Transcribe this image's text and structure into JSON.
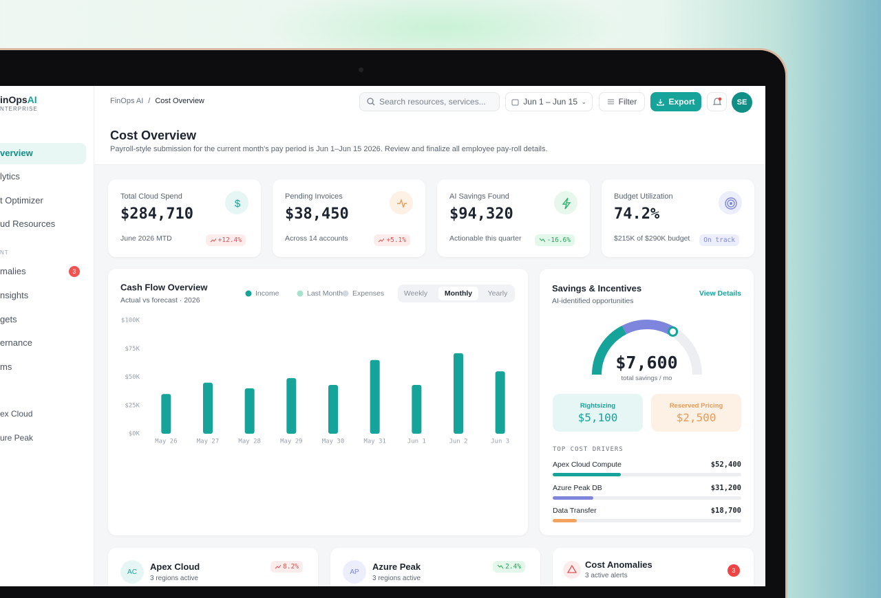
{
  "sidebar": {
    "logo": {
      "name": "inOps",
      "accent": "AI",
      "subtitle": "NTERPRISE"
    },
    "nav": [
      "verview",
      "lytics",
      "t Optimizer",
      "ud Resources"
    ],
    "section": "NT",
    "nav2": [
      {
        "label": "malies",
        "badge": "3"
      },
      {
        "label": "nsights"
      },
      {
        "label": "gets"
      },
      {
        "label": "ernance"
      },
      {
        "label": "ms"
      }
    ],
    "accounts": [
      "ex Cloud",
      "ure Peak"
    ]
  },
  "header": {
    "breadcrumb": [
      "FinOps AI",
      "/",
      "Cost Overview"
    ],
    "search": "Search resources, services...",
    "date_range": "Jun 1 – Jun 15",
    "filter": "Filter",
    "export": "Export",
    "avatar": "SE"
  },
  "page": {
    "title": "Cost Overview",
    "subtitle": "Payroll-style submission for the current month's pay period is Jun 1–Jun 15 2026. Review and finalize all employee pay-roll details."
  },
  "kpis": [
    {
      "label": "Total Cloud Spend",
      "value": "$284,710",
      "note": "June 2026 MTD",
      "badge": "+12.4%"
    },
    {
      "label": "Pending Invoices",
      "value": "$38,450",
      "note": "Across 14 accounts",
      "badge": "+5.1%"
    },
    {
      "label": "AI Savings Found",
      "value": "$94,320",
      "note": "Actionable this quarter",
      "badge": "-16.6%"
    },
    {
      "label": "Budget Utilization",
      "value": "74.2%",
      "note": "$215K of $290K budget",
      "badge": "On track"
    }
  ],
  "chart_data": {
    "type": "bar",
    "title": "Cash Flow Overview",
    "subtitle": "Actual vs forecast · 2026",
    "tabs": [
      "Weekly",
      "Monthly",
      "Yearly"
    ],
    "categories": [
      "May 26",
      "May 27",
      "May 28",
      "May 29",
      "May 30",
      "May 31",
      "Jun 1",
      "Jun 2",
      "Jun 3"
    ],
    "series": [
      {
        "name": "Income",
        "color": "#15a39a",
        "values": [
          35000,
          45000,
          40000,
          49000,
          43000,
          65000,
          43000,
          71000,
          55000
        ]
      },
      {
        "name": "Last Month",
        "color": "#a6e2cd",
        "values": [
          null,
          null,
          null,
          null,
          null,
          null,
          null,
          null,
          null
        ]
      },
      {
        "name": "Expenses",
        "color": "#d3d8e0",
        "values": [
          null,
          null,
          null,
          null,
          null,
          null,
          null,
          null,
          null
        ]
      }
    ],
    "ylim": [
      0,
      100000
    ],
    "yticks": [
      {
        "value": 0,
        "label": "$0K"
      },
      {
        "value": 25000,
        "label": "$25K"
      },
      {
        "value": 50000,
        "label": "$50K"
      },
      {
        "value": 75000,
        "label": "$75K"
      },
      {
        "value": 100000,
        "label": "$100K"
      }
    ],
    "grid": false
  },
  "savings": {
    "title": "Savings & Incentives",
    "subtitle": "AI-identified opportunities",
    "link": "View Details",
    "total": "$7,600",
    "total_label": "total savings / mo",
    "boxes": [
      {
        "label": "Rightsizing",
        "value": "$5,100"
      },
      {
        "label": "Reserved Pricing",
        "value": "$2,500"
      }
    ],
    "drivers_title": "TOP COST DRIVERS",
    "drivers": [
      {
        "name": "Apex Cloud Compute",
        "value": 52400,
        "value_label": "$52,400",
        "color": "#15a39a"
      },
      {
        "name": "Azure Peak DB",
        "value": 31200,
        "value_label": "$31,200",
        "color": "#7d86dc"
      },
      {
        "name": "Data Transfer",
        "value": 18700,
        "value_label": "$18,700",
        "color": "#f3a35e"
      }
    ]
  },
  "bottom": [
    {
      "initials": "AC",
      "name": "Apex Cloud",
      "note": "3 regions active",
      "badge": "8.2%"
    },
    {
      "initials": "AP",
      "name": "Azure Peak",
      "note": "3 regions active",
      "badge": "2.4%"
    },
    {
      "name": "Cost Anomalies",
      "note": "3 active alerts",
      "badge": "3"
    }
  ]
}
